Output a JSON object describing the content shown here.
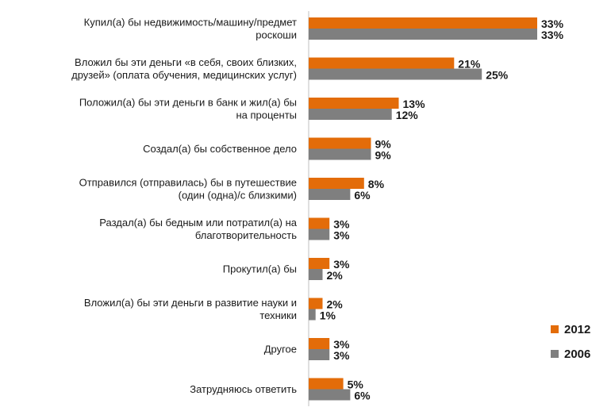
{
  "chart_data": {
    "type": "bar",
    "orientation": "horizontal",
    "categories": [
      [
        "Купил(а) бы недвижимость/машину/предмет",
        "роскоши"
      ],
      [
        "Вложил бы эти деньги «в себя, своих близких,",
        "друзей» (оплата обучения, медицинских услуг)"
      ],
      [
        "Положил(а) бы эти деньги в банк и жил(а) бы",
        "на проценты"
      ],
      [
        "Создал(а) бы собственное дело"
      ],
      [
        "Отправился (отправилась) бы в путешествие",
        "(один (одна)/с близкими)"
      ],
      [
        "Раздал(а) бы бедным или потратил(а) на",
        "благотворительность"
      ],
      [
        "Прокутил(а) бы"
      ],
      [
        "Вложил(а) бы эти деньги в развитие науки и",
        "техники"
      ],
      [
        "Другое"
      ],
      [
        "Затрудняюсь ответить"
      ]
    ],
    "series": [
      {
        "name": "2012",
        "color": "#e36c09",
        "values": [
          33,
          21,
          13,
          9,
          8,
          3,
          3,
          2,
          3,
          5
        ]
      },
      {
        "name": "2006",
        "color": "#7f7f7f",
        "values": [
          33,
          25,
          12,
          9,
          6,
          3,
          2,
          1,
          3,
          6
        ]
      }
    ],
    "value_suffix": "%",
    "xlim": [
      0,
      35
    ],
    "grid": false,
    "legend_position": "right"
  }
}
